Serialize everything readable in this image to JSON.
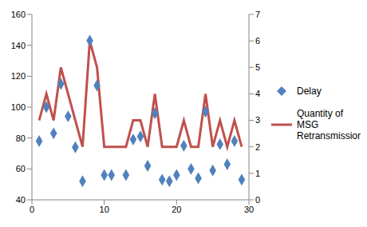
{
  "chart_data": {
    "type": "combo",
    "x": [
      1,
      2,
      3,
      4,
      5,
      6,
      7,
      8,
      9,
      10,
      11,
      12,
      13,
      14,
      15,
      16,
      17,
      18,
      19,
      20,
      21,
      22,
      23,
      24,
      25,
      26,
      27,
      28,
      29
    ],
    "series": [
      {
        "name": "Delay",
        "type": "scatter",
        "marker": "diamond",
        "color": "#4f81bd",
        "values": [
          78,
          100,
          83,
          115,
          94,
          74,
          52,
          143,
          114,
          56,
          56,
          null,
          56,
          79,
          81,
          62,
          96,
          53,
          52,
          56,
          75,
          60,
          54,
          97,
          59,
          76,
          63,
          78,
          53
        ]
      },
      {
        "name": "Quantity of MSG Retransmission",
        "type": "line",
        "axis": "y2",
        "color": "#c0504d",
        "values": [
          3,
          4,
          3,
          5,
          4,
          3,
          2,
          6,
          5,
          2,
          2,
          2,
          2,
          3,
          3,
          2,
          4,
          2,
          2,
          2,
          3,
          2,
          2,
          4,
          2,
          3,
          2,
          3,
          2
        ]
      }
    ],
    "xlim": [
      0,
      30
    ],
    "xticks": [
      0,
      10,
      20,
      30
    ],
    "ylim": [
      40,
      160
    ],
    "yticks": [
      40,
      60,
      80,
      100,
      120,
      140,
      160
    ],
    "y2lim": [
      0,
      7
    ],
    "y2ticks": [
      0,
      1,
      2,
      3,
      4,
      5,
      6,
      7
    ],
    "legend": "right",
    "grid": false
  }
}
